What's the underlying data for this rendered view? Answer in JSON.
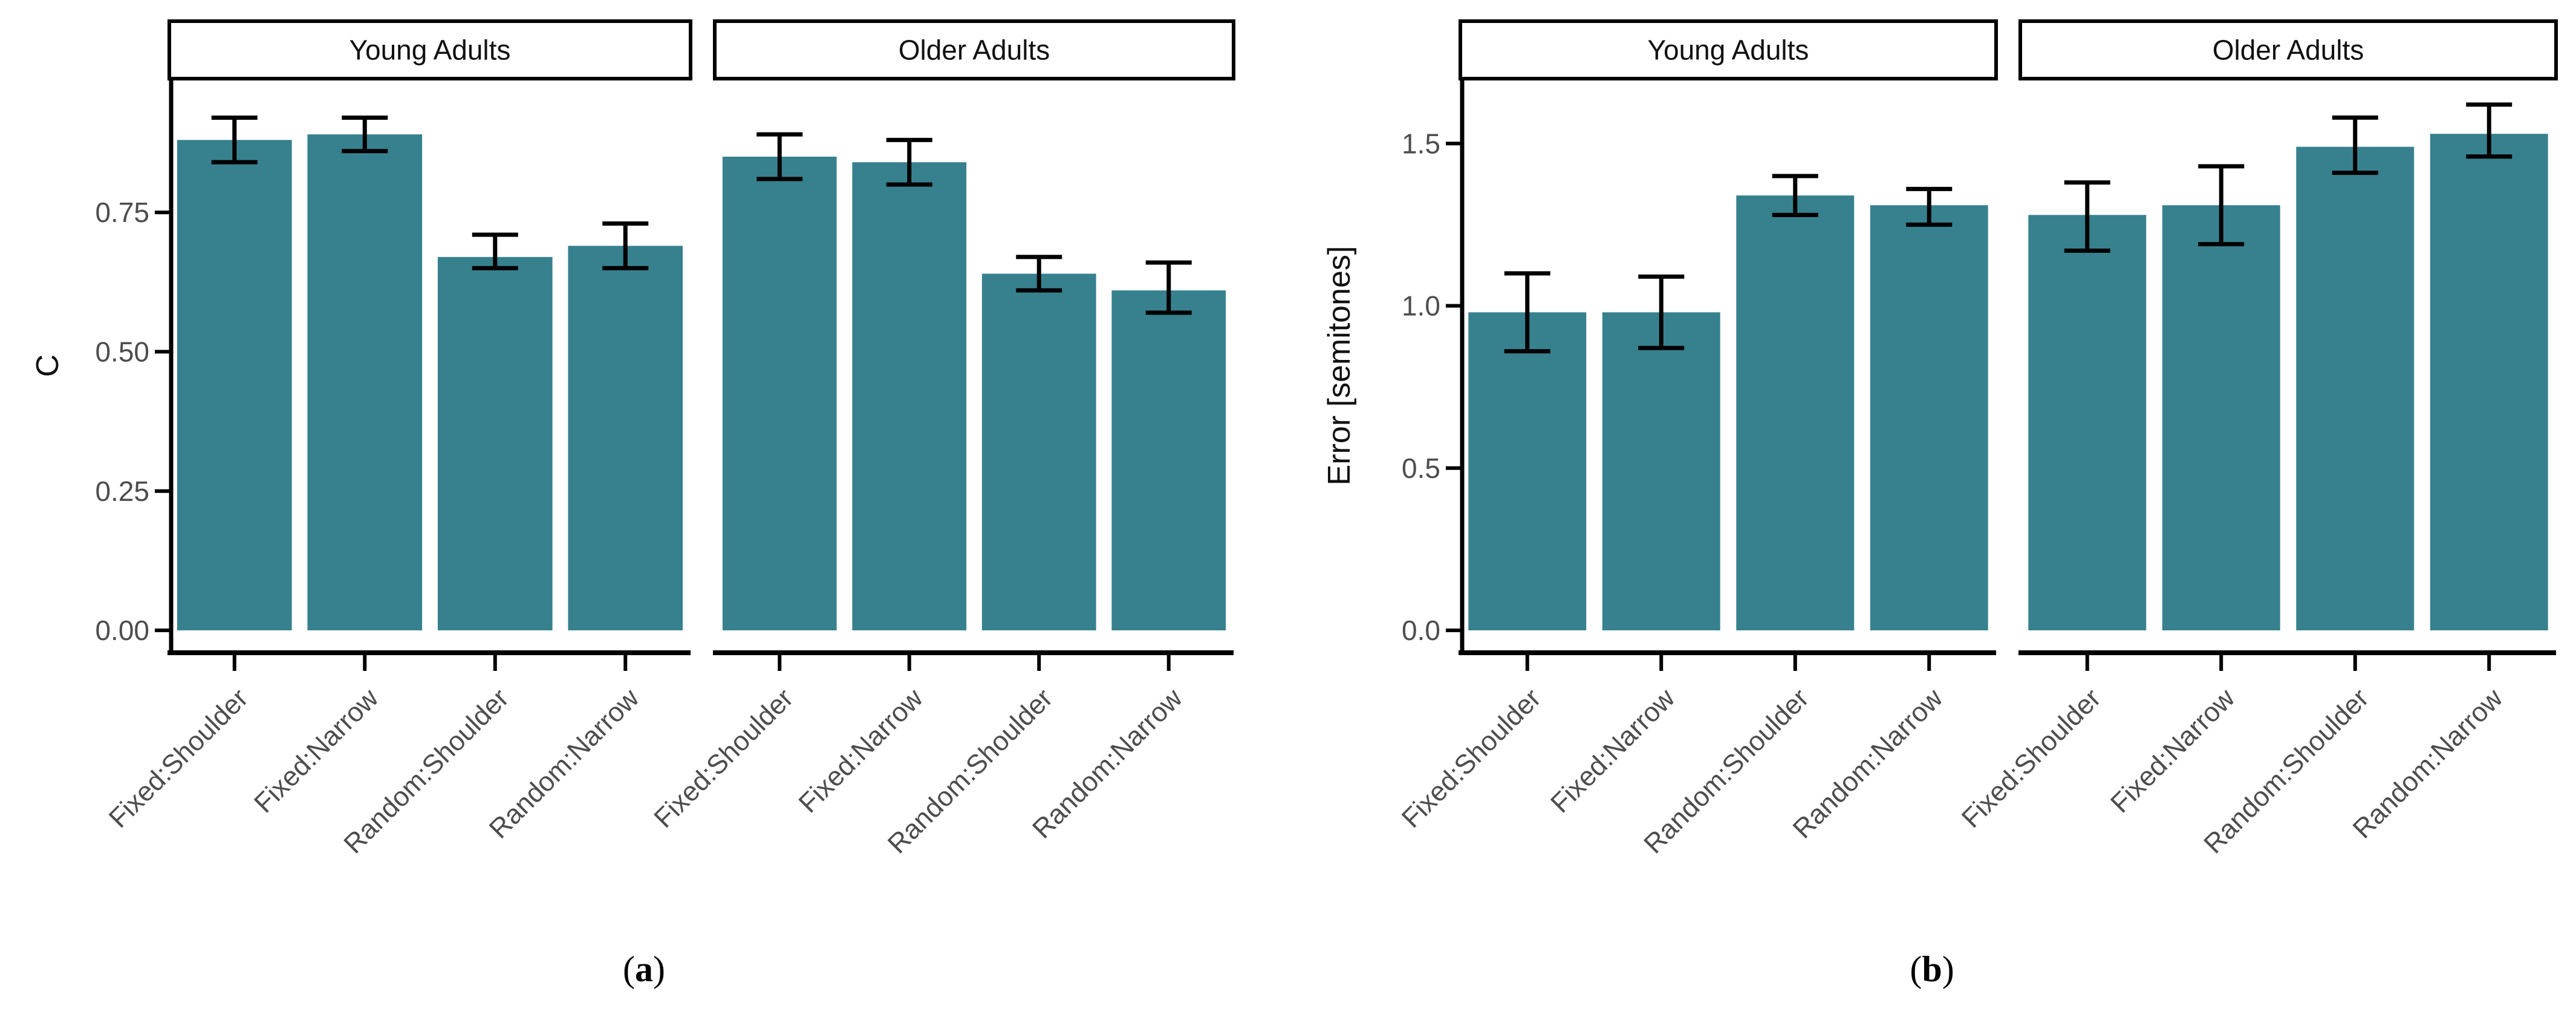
{
  "figure": {
    "background": "#ffffff",
    "captions": [
      {
        "open": "(",
        "letter": "a",
        "close": ")"
      },
      {
        "open": "(",
        "letter": "b",
        "close": ")"
      }
    ]
  },
  "colors": {
    "bar": "#37818F",
    "axis_line": "#000000",
    "tick_label": "#4D4D4D",
    "axis_title": "#111111",
    "strip_text": "#111111",
    "strip_border": "#000000",
    "error_bar": "#000000"
  },
  "chart_data": [
    {
      "type": "bar",
      "panel": "a",
      "title": "",
      "xlabel": "",
      "ylabel": "C",
      "ylim": [
        0,
        0.99
      ],
      "yticks": [
        0,
        0.25,
        0.5,
        0.75
      ],
      "ytick_labels": [
        "0.00",
        "0.25",
        "0.50",
        "0.75"
      ],
      "grid": false,
      "legend": "none",
      "categories": [
        "Fixed:Shoulder",
        "Fixed:Narrow",
        "Random:Shoulder",
        "Random:Narrow"
      ],
      "facets": [
        {
          "label": "Young Adults",
          "values": [
            0.88,
            0.89,
            0.67,
            0.69
          ],
          "err_low": [
            0.84,
            0.86,
            0.65,
            0.65
          ],
          "err_high": [
            0.92,
            0.92,
            0.71,
            0.73
          ]
        },
        {
          "label": "Older Adults",
          "values": [
            0.85,
            0.84,
            0.64,
            0.61
          ],
          "err_low": [
            0.81,
            0.8,
            0.61,
            0.57
          ],
          "err_high": [
            0.89,
            0.88,
            0.67,
            0.66
          ]
        }
      ]
    },
    {
      "type": "bar",
      "panel": "b",
      "title": "",
      "xlabel": "",
      "ylabel": "Error [semitones]",
      "ylim": [
        0,
        1.7
      ],
      "yticks": [
        0,
        0.5,
        1.0,
        1.5
      ],
      "ytick_labels": [
        "0.0",
        "0.5",
        "1.0",
        "1.5"
      ],
      "grid": false,
      "legend": "none",
      "categories": [
        "Fixed:Shoulder",
        "Fixed:Narrow",
        "Random:Shoulder",
        "Random:Narrow"
      ],
      "facets": [
        {
          "label": "Young Adults",
          "values": [
            0.98,
            0.98,
            1.34,
            1.31
          ],
          "err_low": [
            0.86,
            0.87,
            1.28,
            1.25
          ],
          "err_high": [
            1.1,
            1.09,
            1.4,
            1.36
          ]
        },
        {
          "label": "Older Adults",
          "values": [
            1.28,
            1.31,
            1.49,
            1.53
          ],
          "err_low": [
            1.17,
            1.19,
            1.41,
            1.46
          ],
          "err_high": [
            1.38,
            1.43,
            1.58,
            1.62
          ]
        }
      ]
    }
  ]
}
